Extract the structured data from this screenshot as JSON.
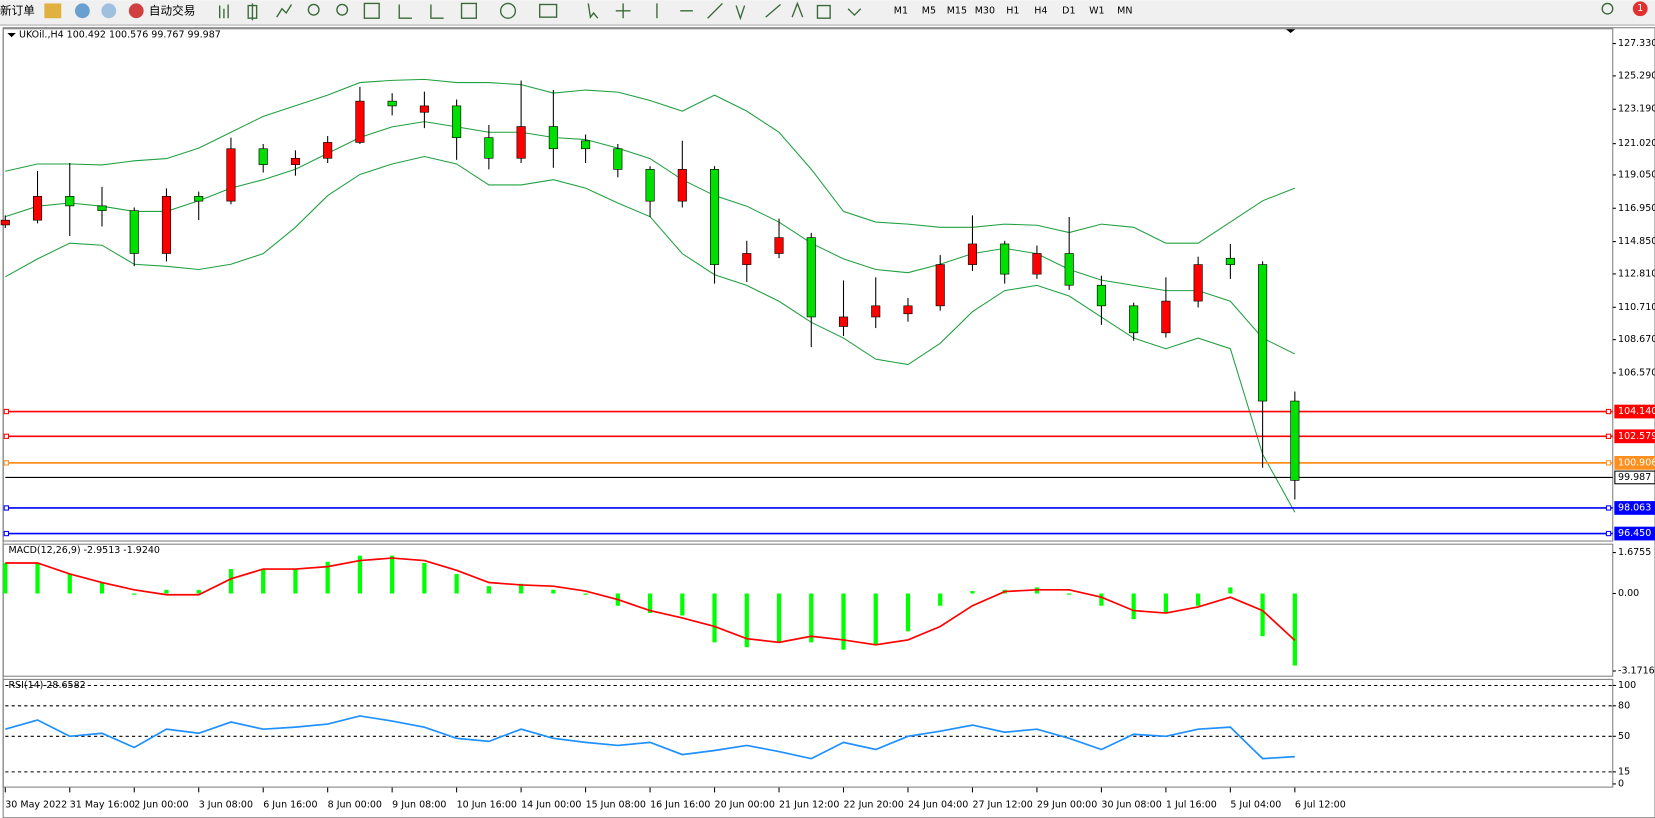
{
  "toolbar": {
    "new_order": "新订单",
    "auto_trading": "自动交易",
    "timeframes": [
      "M1",
      "M5",
      "M15",
      "M30",
      "H1",
      "H4",
      "D1",
      "W1",
      "MN"
    ],
    "notifications": "1"
  },
  "chart_data": [
    {
      "type": "candlestick",
      "title": "UKOil.,H4 100.492 100.576 99.767 99.987",
      "categories": [
        "30 May 2022",
        null,
        "31 May 16:00",
        null,
        "2 Jun 00:00",
        null,
        "3 Jun 08:00",
        null,
        "6 Jun 16:00",
        null,
        "8 Jun 00:00",
        null,
        "9 Jun 08:00",
        null,
        "10 Jun 16:00",
        null,
        "14 Jun 00:00",
        null,
        "15 Jun 08:00",
        null,
        "16 Jun 16:00",
        null,
        "20 Jun 00:00",
        null,
        "21 Jun 12:00",
        null,
        "22 Jun 20:00",
        null,
        "24 Jun 04:00",
        null,
        "27 Jun 12:00",
        null,
        "29 Jun 00:00",
        null,
        "30 Jun 08:00",
        null,
        "1 Jul 16:00",
        null,
        "5 Jul 04:00",
        null,
        "6 Jul 12:00"
      ],
      "open": [
        115.9,
        116.2,
        117.7,
        117.1,
        116.8,
        114.1,
        117.7,
        117.4,
        120.7,
        119.7,
        120.1,
        121.1,
        123.7,
        123.0,
        123.4,
        121.4,
        120.1,
        122.1,
        121.2,
        120.7,
        119.4,
        117.4,
        119.4,
        113.4,
        114.1,
        115.1,
        109.5,
        110.1,
        110.3,
        110.8,
        113.4,
        114.7,
        112.8,
        114.1,
        112.1,
        110.8,
        109.1,
        111.1,
        113.8,
        113.4,
        104.8
      ],
      "high": [
        116.5,
        119.3,
        119.8,
        118.3,
        117.0,
        118.2,
        118.0,
        121.4,
        121.0,
        120.6,
        121.5,
        124.6,
        124.2,
        124.3,
        123.8,
        122.2,
        125.0,
        124.4,
        121.6,
        121.0,
        119.6,
        121.2,
        119.6,
        114.9,
        116.3,
        115.4,
        112.4,
        112.6,
        111.3,
        114.0,
        116.5,
        114.9,
        114.6,
        116.4,
        112.7,
        111.0,
        112.6,
        113.9,
        114.7,
        113.6,
        105.4
      ],
      "low": [
        115.7,
        116.0,
        115.2,
        115.8,
        113.3,
        113.6,
        116.2,
        117.2,
        119.2,
        119.0,
        119.8,
        121.0,
        122.8,
        122.0,
        120.0,
        119.4,
        119.8,
        119.5,
        119.8,
        118.9,
        116.4,
        117.0,
        112.2,
        112.3,
        113.8,
        108.2,
        108.9,
        109.4,
        109.8,
        110.5,
        113.0,
        112.2,
        112.5,
        111.8,
        109.6,
        108.6,
        108.8,
        110.7,
        112.5,
        100.6,
        98.6
      ],
      "close": [
        116.2,
        117.7,
        117.1,
        116.8,
        114.1,
        117.7,
        117.4,
        120.7,
        119.7,
        120.1,
        121.1,
        123.7,
        123.4,
        123.4,
        121.4,
        120.1,
        122.1,
        120.7,
        120.7,
        119.4,
        117.4,
        119.4,
        113.4,
        114.1,
        115.1,
        110.1,
        110.1,
        110.8,
        110.8,
        113.4,
        114.7,
        112.8,
        114.1,
        112.1,
        110.8,
        109.1,
        111.1,
        113.4,
        113.4,
        104.8,
        99.8
      ],
      "up_color": "#ff0000",
      "down_color": "#00e000",
      "bands": {
        "color": "#20a040",
        "upper": [
          119.28,
          119.74,
          119.74,
          119.68,
          119.94,
          120.08,
          120.74,
          121.74,
          122.74,
          123.41,
          124.08,
          124.87,
          125.01,
          125.07,
          124.87,
          124.87,
          124.74,
          124.21,
          124.4,
          124.27,
          123.74,
          123.07,
          124.08,
          123.07,
          121.74,
          119.41,
          116.75,
          116.08,
          115.95,
          115.75,
          115.75,
          115.95,
          115.88,
          115.42,
          115.95,
          115.75,
          114.75,
          114.75,
          116.08,
          117.42,
          118.22
        ],
        "middle": [
          116.42,
          117.08,
          117.28,
          117.08,
          116.75,
          116.75,
          117.42,
          118.22,
          118.75,
          119.41,
          120.41,
          121.41,
          122.08,
          122.41,
          122.08,
          121.74,
          121.74,
          121.41,
          121.28,
          120.74,
          120.08,
          118.75,
          117.75,
          117.08,
          116.08,
          114.75,
          113.76,
          113.09,
          112.89,
          113.42,
          114.09,
          114.42,
          114.09,
          113.09,
          112.42,
          112.09,
          111.76,
          111.76,
          111.09,
          108.77,
          107.77
        ],
        "lower": [
          112.63,
          113.76,
          114.75,
          114.62,
          113.42,
          113.29,
          113.09,
          113.42,
          114.09,
          115.75,
          117.75,
          119.08,
          119.74,
          120.21,
          119.74,
          118.42,
          118.42,
          118.75,
          118.22,
          117.28,
          116.42,
          114.09,
          112.76,
          112.09,
          111.09,
          109.76,
          108.77,
          107.44,
          107.1,
          108.44,
          110.43,
          111.76,
          112.09,
          111.42,
          110.09,
          108.77,
          108.1,
          108.77,
          108.1,
          101.45,
          97.79
        ]
      },
      "levels": [
        {
          "value": 104.14,
          "label": "104.140",
          "color": "#ff0000"
        },
        {
          "value": 102.579,
          "label": "102.579",
          "color": "#ff0000"
        },
        {
          "value": 100.906,
          "label": "100.906",
          "color": "#ff9020"
        },
        {
          "value": 99.987,
          "label": "99.987",
          "color": "#000000"
        },
        {
          "value": 98.063,
          "label": "98.063",
          "color": "#0000ff"
        },
        {
          "value": 96.45,
          "label": "96.450",
          "color": "#0000ff"
        }
      ],
      "ylim": [
        95.98,
        128.26
      ],
      "yticks": [
        {
          "value": 127.33,
          "label": "127.330"
        },
        {
          "value": 125.29,
          "label": "125.290"
        },
        {
          "value": 123.19,
          "label": "123.190"
        },
        {
          "value": 121.02,
          "label": "121.020"
        },
        {
          "value": 119.05,
          "label": "119.050"
        },
        {
          "value": 116.95,
          "label": "116.950"
        },
        {
          "value": 114.85,
          "label": "114.850"
        },
        {
          "value": 112.81,
          "label": "112.810"
        },
        {
          "value": 110.71,
          "label": "110.710"
        },
        {
          "value": 108.67,
          "label": "108.670"
        },
        {
          "value": 106.57,
          "label": "106.570"
        }
      ]
    },
    {
      "type": "macd",
      "title": "MACD(12,26,9) -2.9513 -1.9240",
      "values": [
        1.25,
        1.25,
        0.8,
        0.45,
        -0.05,
        0.15,
        0.15,
        1.0,
        1.0,
        1.0,
        1.3,
        1.55,
        1.55,
        1.25,
        0.8,
        0.3,
        0.4,
        0.15,
        -0.05,
        -0.5,
        -0.8,
        -0.9,
        -2.0,
        -2.2,
        -2.0,
        -2.0,
        -2.3,
        -2.1,
        -1.55,
        -0.5,
        0.1,
        0.15,
        0.25,
        -0.05,
        -0.5,
        -1.05,
        -0.8,
        -0.5,
        0.25,
        -1.75,
        -2.95
      ],
      "color": "#00ff00",
      "signal": [
        1.25,
        1.25,
        0.8,
        0.45,
        0.15,
        -0.05,
        -0.05,
        0.6,
        1.0,
        1.0,
        1.1,
        1.35,
        1.45,
        1.35,
        0.95,
        0.45,
        0.35,
        0.3,
        0.1,
        -0.25,
        -0.7,
        -1.0,
        -1.35,
        -1.85,
        -2.0,
        -1.75,
        -1.9,
        -2.1,
        -1.9,
        -1.35,
        -0.5,
        0.08,
        0.15,
        0.15,
        -0.15,
        -0.7,
        -0.8,
        -0.55,
        -0.15,
        -0.7,
        -1.92
      ],
      "signal_color": "#ff0000",
      "ylim": [
        -3.386,
        2.019
      ],
      "yticks": [
        1.6755,
        {
          "value": 0,
          "label": "0.00"
        },
        -3.1716
      ]
    },
    {
      "type": "line",
      "title": "RSI(14) 28.6582",
      "values": [
        57,
        66,
        50,
        53,
        39,
        57,
        53,
        64,
        57,
        59,
        62,
        70,
        65,
        59,
        48,
        45,
        57,
        48,
        44,
        41,
        44,
        32,
        36,
        41,
        35,
        28,
        44,
        37,
        50,
        55,
        61,
        54,
        57,
        48,
        37,
        52,
        50,
        57,
        59,
        28,
        30
      ],
      "color": "#1e90ff",
      "ylim": [
        0,
        106
      ],
      "yticks": [
        100,
        80,
        50,
        15,
        0
      ],
      "grid": true
    }
  ]
}
